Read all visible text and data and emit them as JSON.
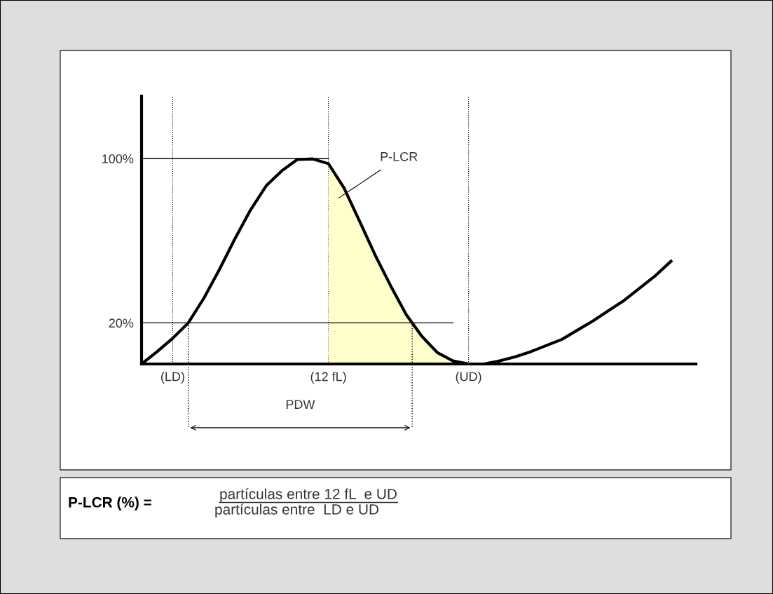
{
  "chart_data": {
    "type": "line",
    "categories": [
      null,
      null,
      "(LD)",
      null,
      null,
      null,
      null,
      null,
      null,
      null,
      null,
      null,
      "(12 fL)",
      null,
      null,
      null,
      null,
      null,
      null,
      null,
      null,
      "(UD)",
      null,
      null,
      null,
      null,
      null,
      null,
      null,
      null,
      null,
      null,
      null,
      null,
      null
    ],
    "series": [
      {
        "color": "#000000",
        "values": [
          0,
          6,
          12.5,
          20,
          32,
          46,
          61,
          75,
          86.7,
          94,
          99.5,
          99.8,
          97.5,
          85.7,
          69.5,
          53,
          38,
          24,
          13.5,
          5.5,
          1.5,
          0,
          0,
          1.5,
          3.5,
          6,
          9,
          12,
          16.5,
          21,
          26,
          31,
          37,
          43,
          50
        ]
      },
      {
        "type": "area",
        "color": "#ffffcc",
        "values": [
          null,
          null,
          null,
          null,
          null,
          null,
          null,
          null,
          null,
          null,
          null,
          null,
          97.5,
          85.7,
          69.5,
          53,
          38,
          24,
          13.5,
          5.5,
          1.5,
          0,
          null,
          null,
          null,
          null,
          null,
          null,
          null,
          null,
          null,
          null,
          null,
          null,
          null
        ]
      },
      {
        "color": "#000000",
        "values": [
          100,
          100,
          100,
          100,
          100,
          100,
          100,
          100,
          100,
          100,
          100,
          100,
          100,
          null,
          null,
          null,
          null,
          null,
          null,
          null,
          null,
          null,
          null,
          null,
          null,
          null,
          null,
          null,
          null,
          null,
          null,
          null,
          null,
          null,
          null
        ]
      },
      {
        "color": "#000000",
        "values": [
          20,
          20,
          20,
          20,
          20,
          20,
          20,
          20,
          20,
          20,
          20,
          20,
          20,
          20,
          20,
          20,
          20,
          20,
          20,
          20,
          20,
          null,
          null,
          null,
          null,
          null,
          null,
          null,
          null,
          null,
          null,
          null,
          null,
          null,
          null
        ]
      }
    ],
    "ylim": [
      0,
      130.4
    ],
    "yticks": [
      {
        "value": 20,
        "label": "20%"
      },
      {
        "value": 100,
        "label": "100%"
      }
    ],
    "ref_lines": [
      {
        "axis": "x",
        "value": "(LD)",
        "color": "#000000",
        "line_style": "dotted"
      },
      {
        "axis": "x",
        "value": "(12 fL)",
        "color": "#000000",
        "line_style": "dotted"
      },
      {
        "axis": "x",
        "value": "(UD)",
        "color": "#000000",
        "line_style": "dotted"
      }
    ],
    "annotations": [
      "P-LCR",
      "PDW",
      "P-LCR (%) =",
      "partículas entre 12 fL  e UD",
      "partículas entre  LD e UD"
    ],
    "grid": false
  }
}
